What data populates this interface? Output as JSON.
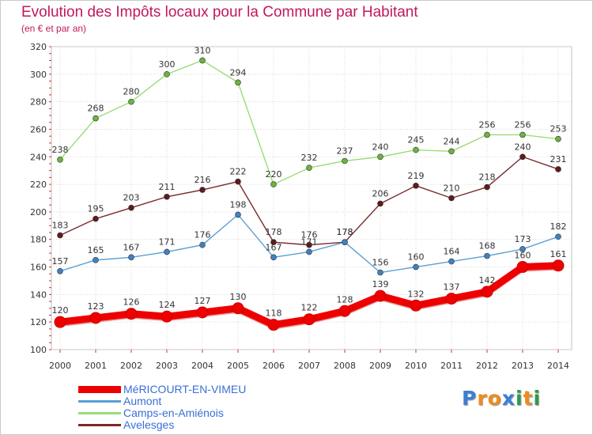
{
  "title": "Evolution des Impôts locaux pour la Commune par Habitant",
  "subtitle": "(en € et par an)",
  "logo": {
    "letters": [
      {
        "char": "P",
        "color": "#3a7fd5"
      },
      {
        "char": "r",
        "color": "#f08a1c"
      },
      {
        "char": "o",
        "color": "#f08a1c"
      },
      {
        "char": "x",
        "color": "#3a7fd5"
      },
      {
        "char": "i",
        "color": "#2e9a4a"
      },
      {
        "char": "t",
        "color": "#f08a1c"
      },
      {
        "char": "i",
        "color": "#2e9a4a"
      }
    ]
  },
  "chart_data": {
    "type": "line",
    "x": [
      "2000",
      "2001",
      "2002",
      "2003",
      "2004",
      "2005",
      "2006",
      "2007",
      "2008",
      "2009",
      "2010",
      "2011",
      "2012",
      "2013",
      "2014"
    ],
    "ylim": [
      100,
      320
    ],
    "yticks": [
      100,
      120,
      140,
      160,
      180,
      200,
      220,
      240,
      260,
      280,
      300,
      320
    ],
    "grid": true,
    "legend_position": "bottom-left",
    "series": [
      {
        "name": "Camps-en-Amiénois",
        "color": "#99dd77",
        "marker": "#6cb33f",
        "thick": false,
        "values": [
          238,
          268,
          280,
          300,
          310,
          294,
          220,
          232,
          237,
          240,
          245,
          244,
          256,
          256,
          253
        ]
      },
      {
        "name": "Avelesges",
        "color": "#7a2a2a",
        "marker": "#5e1b1b",
        "thick": false,
        "values": [
          183,
          195,
          203,
          211,
          216,
          222,
          178,
          176,
          178,
          206,
          219,
          210,
          218,
          240,
          231
        ]
      },
      {
        "name": "Aumont",
        "color": "#5a9fd4",
        "marker": "#3d82c4",
        "thick": false,
        "values": [
          157,
          165,
          167,
          171,
          176,
          198,
          167,
          171,
          178,
          156,
          160,
          164,
          168,
          173,
          182
        ]
      },
      {
        "name": "MéRICOURT-EN-VIMEU",
        "color": "#ee0000",
        "marker": "#ee0000",
        "thick": true,
        "values": [
          120,
          123,
          126,
          124,
          127,
          130,
          118,
          122,
          128,
          139,
          132,
          137,
          142,
          160,
          161
        ]
      }
    ],
    "legend_order": [
      3,
      2,
      0,
      1
    ]
  }
}
